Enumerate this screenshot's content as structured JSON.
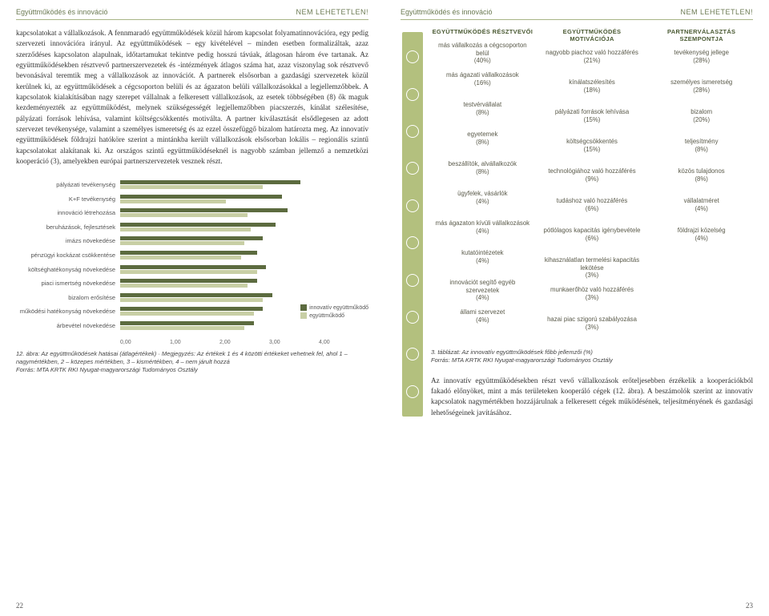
{
  "header": {
    "left_title": "Együttműködés és innováció",
    "right_tag": "NEM LEHETETLEN!"
  },
  "left_page": {
    "paragraph": "kapcsolatokat a vállalkozások. A fennmaradó együttműködések közül három kapcsolat folyamatinnovációra, egy pedig szervezeti innovációra irányul. Az együttműködések – egy kivételével – minden esetben formalizáltak, azaz szerződéses kapcsolaton alapulnak, időtartamukat tekintve pedig hosszú távúak, átlagosan három éve tartanak. Az együttműködésekben résztvevő partnerszervezetek és -intézmények átlagos száma hat, azaz viszonylag sok résztvevő bevonásával teremtik meg a vállalkozások az innovációt. A partnerek elsősorban a gazdasági szervezetek közül kerülnek ki, az együttműködések a cégcsoporton belüli és az ágazaton belüli vállalkozásokkal a legjellemzőbbek. A kapcsolatok kialakításában nagy szerepet vállalnak a felkeresett vállalkozások, az esetek többségében (8) ők maguk kezdeményezték az együttműködést, melynek szükségességét legjellemzőbben piacszerzés, kínálat szélesítése, pályázati források lehívása, valamint költségcsökkentés motiválta. A partner kiválasztását elsődlegesen az adott szervezet tevékenysége, valamint a személyes ismeretség és az ezzel összefüggő bizalom határozta meg. Az innovatív együttműködések földrajzi hatóköre szerint a mintánkba került vállalkozások elsősorban lokális – regionális szintű kapcsolatokat alakítanak ki. Az országos szintű együttműködéseknél is nagyobb számban jellemző a nemzetközi kooperáció (3), amelyekben európai partnerszervezetek vesznek részt.",
    "chart": {
      "type": "bar",
      "categories": [
        "pályázati tevékenység",
        "K+F tevékenység",
        "innováció létrehozása",
        "beruházások, fejlesztések",
        "imázs növekedése",
        "pénzügyi kockázat csökkentése",
        "költséghatékonyság növekedése",
        "piaci ismertség növekedése",
        "bizalom erősítése",
        "működési hatékonyság növekedése",
        "árbevétel növekedése"
      ],
      "series_a_label": "innovatív együttműködő",
      "series_b_label": "együttműködő",
      "series_a": [
        2.9,
        2.6,
        2.7,
        2.5,
        2.3,
        2.2,
        2.35,
        2.2,
        2.45,
        2.3,
        2.15
      ],
      "series_b": [
        2.3,
        1.7,
        2.05,
        2.1,
        2.0,
        1.95,
        2.2,
        2.05,
        2.3,
        2.15,
        2.0
      ],
      "xlim_max": 4.0,
      "axis_ticks": [
        "0,00",
        "1,00",
        "2,00",
        "3,00",
        "4,00"
      ],
      "color_a": "#5c6b3f",
      "color_b": "#c8cfa5",
      "caption": "12. ábra: Az együttműködések hatásai (átlagértékek) · Megjegyzés: Az értékek 1 és 4 közötti értékeket vehetnek fel, ahol 1 – nagymértékben, 2 – közepes mértékben, 3 – kismértékben, 4 – nem járult hozzá",
      "source": "Forrás: MTA KRTK RKI Nyugat-magyarországi Tudományos Osztály"
    },
    "page_number": "22"
  },
  "right_page": {
    "table": {
      "columns": [
        "EGYÜTTMŰKÖDÉS RÉSZTVEVŐI",
        "EGYÜTTMŰKÖDÉS MOTIVÁCIÓJA",
        "PARTNERVÁLASZTÁS SZEMPONTJA"
      ],
      "col1": [
        {
          "t": "más vállalkozás a cégcsoporton belül",
          "p": "(40%)"
        },
        {
          "t": "más ágazati vállalkozások",
          "p": "(16%)"
        },
        {
          "t": "testvérvállalat",
          "p": "(8%)"
        },
        {
          "t": "egyetemek",
          "p": "(8%)"
        },
        {
          "t": "beszállítók, alvállalkozók",
          "p": "(8%)"
        },
        {
          "t": "ügyfelek, vásárlók",
          "p": "(4%)"
        },
        {
          "t": "más ágazaton kívüli vállalkozások",
          "p": "(4%)"
        },
        {
          "t": "kutatóintézetek",
          "p": "(4%)"
        },
        {
          "t": "innovációt segítő egyéb szervezetek",
          "p": "(4%)"
        },
        {
          "t": "állami szervezet",
          "p": "(4%)"
        }
      ],
      "col2": [
        {
          "t": "nagyobb piachoz való hozzáférés",
          "p": "(21%)"
        },
        {
          "t": "kínálatszélesítés",
          "p": "(18%)"
        },
        {
          "t": "pályázati források lehívása",
          "p": "(15%)"
        },
        {
          "t": "költségcsökkentés",
          "p": "(15%)"
        },
        {
          "t": "technológiához való hozzáférés",
          "p": "(9%)"
        },
        {
          "t": "tudáshoz való hozzáférés",
          "p": "(6%)"
        },
        {
          "t": "pótlólagos kapacitás igénybevétele",
          "p": "(6%)"
        },
        {
          "t": "kihasználatlan termelési kapacitás lekötése",
          "p": "(3%)"
        },
        {
          "t": "munkaerőhöz való hozzáférés",
          "p": "(3%)"
        },
        {
          "t": "hazai piac szigorú szabályozása",
          "p": "(3%)"
        }
      ],
      "col3": [
        {
          "t": "tevékenység jellege",
          "p": "(28%)"
        },
        {
          "t": "személyes ismeretség",
          "p": "(28%)"
        },
        {
          "t": "bizalom",
          "p": "(20%)"
        },
        {
          "t": "teljesítmény",
          "p": "(8%)"
        },
        {
          "t": "közös tulajdonos",
          "p": "(8%)"
        },
        {
          "t": "vállalatméret",
          "p": "(4%)"
        },
        {
          "t": "földrajzi közelség",
          "p": "(4%)"
        }
      ],
      "caption": "3. táblázat: Az innovatív együttműködések főbb jellemzői (%)",
      "source": "Forrás: MTA KRTK RKI Nyugat-magyarországi Tudományos Osztály"
    },
    "paragraph": "Az innovatív együttműködésekben részt vevő vállalkozások erő­teljesebben érzékelik a kooperációkból fakadó előnyöket, mint a más területeken kooperáló cégek (12. ábra). A beszámolók szerint az innovatív kapcsolatok nagymértékben hozzájárulnak a felkeresett cégek működésének, teljesítményének és gazdasági lehetőségeinek javításához.",
    "page_number": "23"
  }
}
